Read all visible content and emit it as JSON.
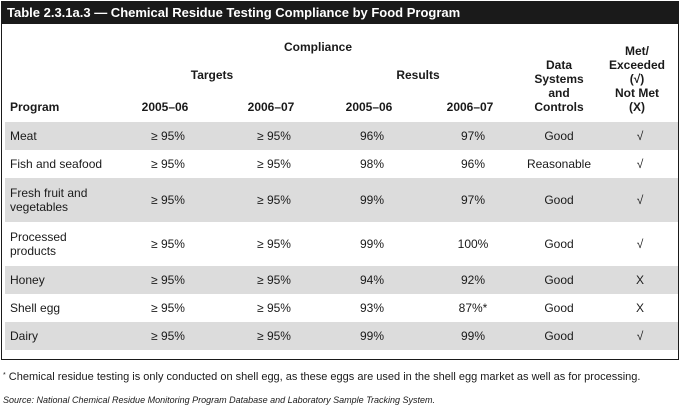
{
  "title": "Table 2.3.1a.3 — Chemical Residue Testing Compliance by Food Program",
  "headers": {
    "compliance": "Compliance",
    "targets": "Targets",
    "results": "Results",
    "program": "Program",
    "t_2005": "2005–06",
    "t_2006": "2006–07",
    "r_2005": "2005–06",
    "r_2006": "2006–07",
    "dsc": [
      "Data",
      "Systems",
      "and",
      "Controls"
    ],
    "met": [
      "Met/",
      "Exceeded",
      "(√)",
      "Not Met",
      "(X)"
    ]
  },
  "rows": [
    {
      "program": [
        "Meat"
      ],
      "t1": "≥ 95%",
      "t2": "≥ 95%",
      "r1": "96%",
      "r2": "97%",
      "dsc": "Good",
      "met": "√"
    },
    {
      "program": [
        "Fish and seafood"
      ],
      "t1": "≥ 95%",
      "t2": "≥ 95%",
      "r1": "98%",
      "r2": "96%",
      "dsc": "Reasonable",
      "met": "√"
    },
    {
      "program": [
        "Fresh fruit and",
        "vegetables"
      ],
      "t1": "≥ 95%",
      "t2": "≥ 95%",
      "r1": "99%",
      "r2": "97%",
      "dsc": "Good",
      "met": "√"
    },
    {
      "program": [
        "Processed",
        "products"
      ],
      "t1": "≥ 95%",
      "t2": "≥ 95%",
      "r1": "99%",
      "r2": "100%",
      "dsc": "Good",
      "met": "√"
    },
    {
      "program": [
        "Honey"
      ],
      "t1": "≥ 95%",
      "t2": "≥ 95%",
      "r1": "94%",
      "r2": "92%",
      "dsc": "Good",
      "met": "X"
    },
    {
      "program": [
        "Shell egg"
      ],
      "t1": "≥ 95%",
      "t2": "≥ 95%",
      "r1": "93%",
      "r2": "87%*",
      "dsc": "Good",
      "met": "X"
    },
    {
      "program": [
        "Dairy"
      ],
      "t1": "≥ 95%",
      "t2": "≥ 95%",
      "r1": "99%",
      "r2": "99%",
      "dsc": "Good",
      "met": "√"
    }
  ],
  "footnote_marker": "*",
  "footnote": "Chemical residue testing is only conducted on shell egg, as these eggs are used in the shell egg market as well as for processing.",
  "source": "Source: National Chemical Residue Monitoring Program Database and Laboratory Sample Tracking System."
}
